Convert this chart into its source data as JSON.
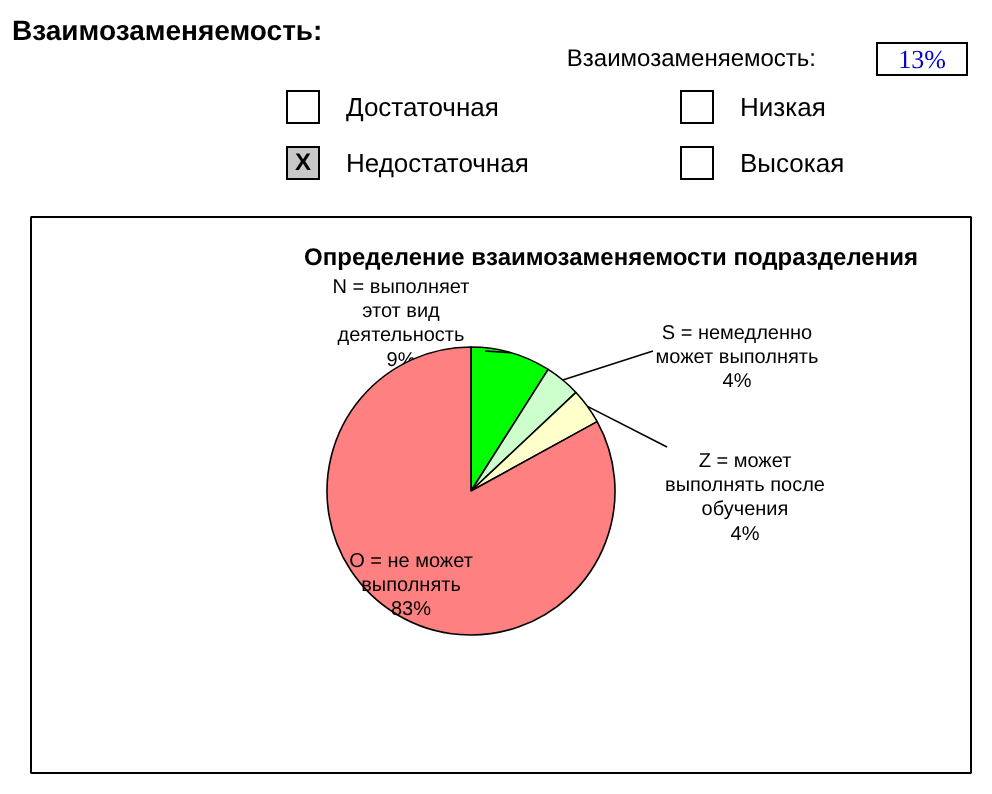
{
  "chart_data": [
    {
      "type": "other",
      "title": "Взаимозаменяемость:",
      "annotations": [
        "Взаимозаменяемость:",
        "13%",
        "Достаточная",
        "Низкая",
        "X",
        "Недостаточная",
        "Высокая"
      ]
    },
    {
      "type": "pie",
      "title": "Определение взаимозаменяемости подразделения",
      "categories": [
        "N = выполняет\nэтот вид\nдеятельность",
        "S = немедленно\nможет выполнять",
        "Z = может\nвыполнять после\nобучения",
        "O = не может\nвыполнять"
      ],
      "values": [
        9,
        4,
        4,
        83
      ],
      "colors": [
        "#00ff00",
        "#ccffcc",
        "#ffffcc",
        "#ff8080"
      ],
      "value_labels": [
        "9%",
        "4%",
        "4%",
        "83%"
      ]
    }
  ]
}
